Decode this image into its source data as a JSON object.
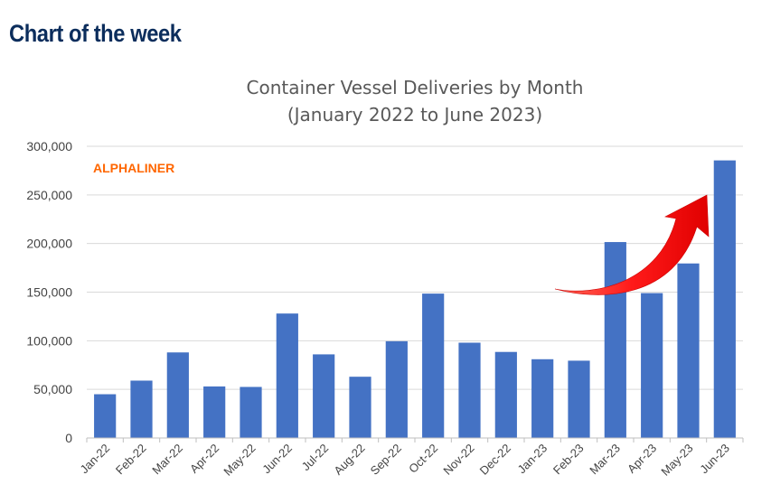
{
  "header": {
    "label": "Chart of the week"
  },
  "chart_data": {
    "type": "bar",
    "title": "Container Vessel Deliveries by Month",
    "subtitle": "(January 2022 to June 2023)",
    "watermark": "ALPHALINER",
    "xlabel": "",
    "ylabel": "",
    "ylim": [
      0,
      300000
    ],
    "yticks": [
      0,
      50000,
      100000,
      150000,
      200000,
      250000,
      300000
    ],
    "ytick_labels": [
      "0",
      "50,000",
      "100,000",
      "150,000",
      "200,000",
      "250,000",
      "300,000"
    ],
    "grid": true,
    "categories": [
      "Jan-22",
      "Feb-22",
      "Mar-22",
      "Apr-22",
      "May-22",
      "Jun-22",
      "Jul-22",
      "Aug-22",
      "Sep-22",
      "Oct-22",
      "Nov-22",
      "Dec-22",
      "Jan-23",
      "Feb-23",
      "Mar-23",
      "Apr-23",
      "May-23",
      "Jun-23"
    ],
    "values": [
      45000,
      59000,
      88000,
      53000,
      52500,
      128000,
      86000,
      63000,
      99500,
      148500,
      98000,
      88500,
      81000,
      79500,
      201500,
      149000,
      179500,
      285500
    ],
    "colors": {
      "bar": "#4472c4",
      "grid": "#d9d9d9",
      "axis": "#bfbfbf",
      "watermark": "#ff6600",
      "arrow": "#ff0000"
    },
    "annotation": {
      "type": "curved-arrow",
      "from_category": "Mar-23",
      "to_category": "Jun-23"
    }
  }
}
